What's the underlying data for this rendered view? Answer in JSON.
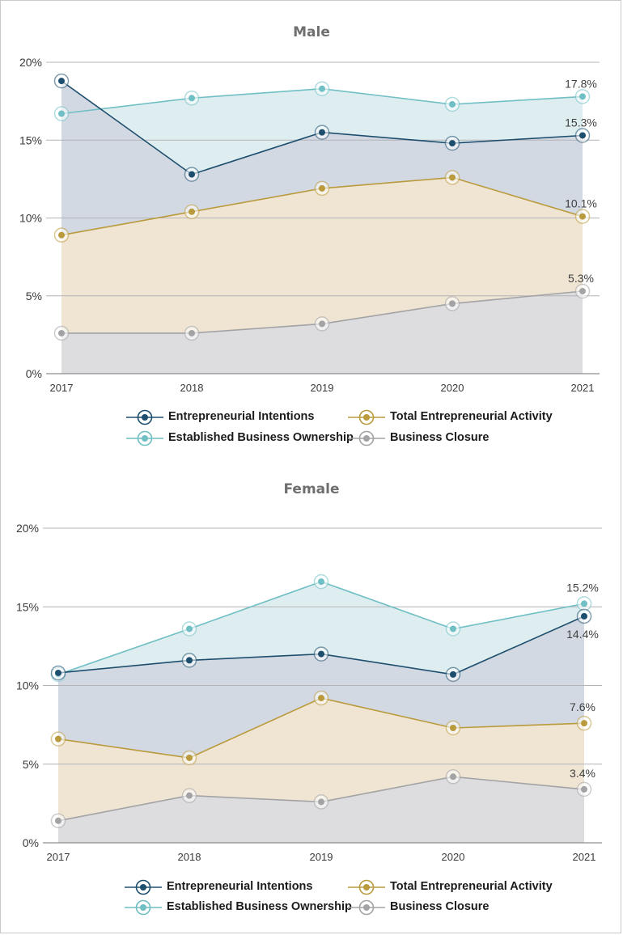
{
  "chart_data": [
    {
      "type": "area",
      "title": "Male",
      "x": [
        "2017",
        "2018",
        "2019",
        "2020",
        "2021"
      ],
      "y_ticks": [
        "0%",
        "5%",
        "10%",
        "15%",
        "20%"
      ],
      "ylim": [
        0,
        20
      ],
      "grid": true,
      "legend_position": "bottom",
      "series": [
        {
          "name": "Established Business Ownership",
          "values": [
            16.7,
            17.7,
            18.3,
            17.3,
            17.8
          ],
          "color": "#6fbfc4",
          "fill": "#deeef0"
        },
        {
          "name": "Entrepreneurial Intentions",
          "values": [
            18.8,
            12.8,
            15.5,
            14.8,
            15.3
          ],
          "color": "#1d4e6e",
          "fill": "#d3d9e2"
        },
        {
          "name": "Total Entrepreneurial Activity",
          "values": [
            8.9,
            10.4,
            11.9,
            12.6,
            10.1
          ],
          "color": "#b99a3c",
          "fill": "#efe5d2"
        },
        {
          "name": "Business Closure",
          "values": [
            2.6,
            2.6,
            3.2,
            4.5,
            5.3
          ],
          "color": "#a3a3a6",
          "fill": "#dddddf"
        }
      ],
      "end_labels": [
        "17.8%",
        "15.3%",
        "10.1%",
        "5.3%"
      ]
    },
    {
      "type": "area",
      "title": "Female",
      "x": [
        "2017",
        "2018",
        "2019",
        "2020",
        "2021"
      ],
      "y_ticks": [
        "0%",
        "5%",
        "10%",
        "15%",
        "20%"
      ],
      "ylim": [
        0,
        20
      ],
      "grid": true,
      "legend_position": "bottom",
      "series": [
        {
          "name": "Established Business Ownership",
          "values": [
            10.7,
            13.6,
            16.6,
            13.6,
            15.2
          ],
          "color": "#6fbfc4",
          "fill": "#deeef0"
        },
        {
          "name": "Entrepreneurial Intentions",
          "values": [
            10.8,
            11.6,
            12.0,
            10.7,
            14.4
          ],
          "color": "#1d4e6e",
          "fill": "#d3d9e2"
        },
        {
          "name": "Total Entrepreneurial Activity",
          "values": [
            6.6,
            5.4,
            9.2,
            7.3,
            7.6
          ],
          "color": "#b99a3c",
          "fill": "#efe5d2"
        },
        {
          "name": "Business Closure",
          "values": [
            1.4,
            3.0,
            2.6,
            4.2,
            3.4
          ],
          "color": "#a3a3a6",
          "fill": "#dddddf"
        }
      ],
      "end_labels": [
        "15.2%",
        "14.4%",
        "7.6%",
        "3.4%"
      ]
    }
  ],
  "legend": [
    {
      "name": "Entrepreneurial Intentions",
      "color": "#1d4e6e",
      "icon": "ring-marker-icon"
    },
    {
      "name": "Total Entrepreneurial Activity",
      "color": "#b99a3c",
      "icon": "ring-marker-icon"
    },
    {
      "name": "Established Business Ownership",
      "color": "#6fbfc4",
      "icon": "ring-marker-icon"
    },
    {
      "name": "Business Closure",
      "color": "#a3a3a6",
      "icon": "ring-marker-icon"
    }
  ]
}
